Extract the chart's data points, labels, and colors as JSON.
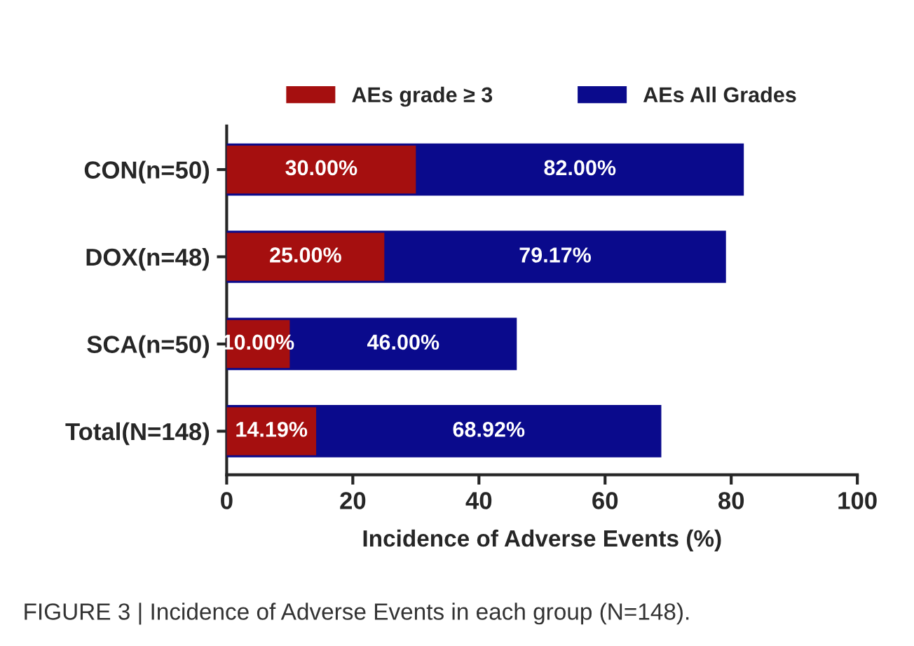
{
  "chart_data": {
    "type": "bar",
    "orientation": "horizontal",
    "xlabel": "Incidence of Adverse Events (%)",
    "categories": [
      "CON(n=50)",
      "DOX(n=48)",
      "SCA(n=50)",
      "Total(N=148)"
    ],
    "series": [
      {
        "name": "AEs grade ≥ 3",
        "color": "#a50f0f",
        "values": [
          30,
          25,
          10,
          14.19
        ],
        "value_labels": [
          "30.00%",
          "25.00%",
          "10.00%",
          "14.19%"
        ]
      },
      {
        "name": "AEs All Grades",
        "color": "#0a0a8c",
        "values": [
          82,
          79.17,
          46,
          68.92
        ],
        "value_labels": [
          "82.00%",
          "79.17%",
          "46.00%",
          "68.92%"
        ]
      }
    ],
    "xlim": [
      0,
      100
    ],
    "xticks": [
      0,
      20,
      40,
      60,
      80,
      100
    ],
    "grid": false,
    "legend": "top",
    "annotations": [
      "FIGURE 3 | Incidence of Adverse Events in each group (N=148)."
    ]
  }
}
